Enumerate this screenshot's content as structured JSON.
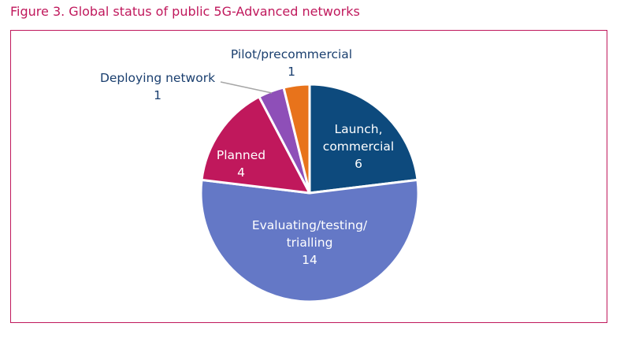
{
  "figure": {
    "title": "Figure 3. Global status of public 5G-Advanced networks"
  },
  "chart_data": {
    "type": "pie",
    "title": "Figure 3. Global status of public 5G-Advanced networks",
    "slices": [
      {
        "label_lines": [
          "Launch,",
          "commercial"
        ],
        "value": 6,
        "value_text": "6",
        "color": "#0d4a7d"
      },
      {
        "label_lines": [
          "Evaluating/testing/",
          "trialling"
        ],
        "value": 14,
        "value_text": "14",
        "color": "#6478c6"
      },
      {
        "label_lines": [
          "Planned"
        ],
        "value": 4,
        "value_text": "4",
        "color": "#c0185c"
      },
      {
        "label_lines": [
          "Deploying network"
        ],
        "value": 1,
        "value_text": "1",
        "color": "#8e4fb8"
      },
      {
        "label_lines": [
          "Pilot/precommercial"
        ],
        "value": 1,
        "value_text": "1",
        "color": "#e8731b"
      }
    ],
    "start_angle_deg": 0,
    "direction": "clockwise",
    "legend": "none"
  }
}
